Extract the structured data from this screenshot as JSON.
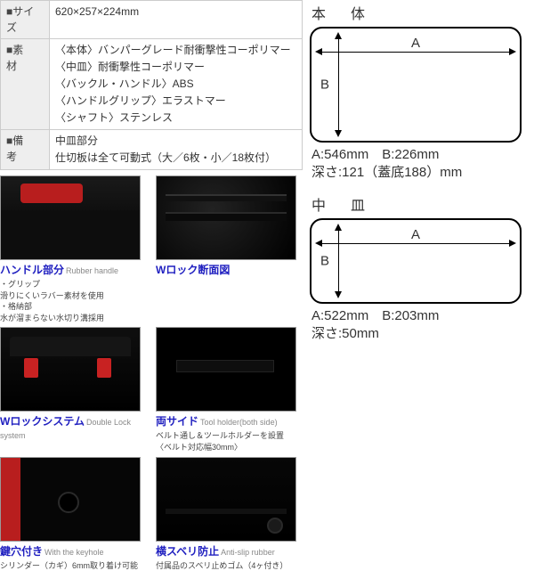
{
  "spec": {
    "size_label": "■サイズ",
    "size_value": "620×257×224mm",
    "material_label": "■素　材",
    "material_lines": [
      "〈本体〉バンパーグレード耐衝撃性コーポリマー",
      "〈中皿〉耐衝撃性コーポリマー",
      "〈バックル・ハンドル〉ABS",
      "〈ハンドルグリップ〉エラストマー",
      "〈シャフト〉ステンレス"
    ],
    "remarks_label": "■備　考",
    "remarks_lines": [
      "中皿部分",
      "仕切板は全て可動式（大／6枚・小／18枚付）"
    ]
  },
  "features": [
    {
      "key": "handle",
      "title_jp": "ハンドル部分",
      "title_en": "Rubber handle",
      "details": [
        "・グリップ",
        "滑りにくいラバー素材を使用",
        "・格納部",
        "水が溜まらない水切り溝採用"
      ]
    },
    {
      "key": "wlock-cross",
      "title_jp": "Wロック断面図",
      "title_en": "",
      "details": []
    },
    {
      "key": "wlock-sys",
      "title_jp": "Wロックシステム",
      "title_en": "Double Lock system",
      "details": []
    },
    {
      "key": "side",
      "title_jp": "両サイド",
      "title_en": "Tool holder(both side)",
      "details": [
        "ベルト通し＆ツールホルダーを設置",
        "〈ベルト対応幅30mm〉"
      ]
    },
    {
      "key": "keyhole",
      "title_jp": "鍵穴付き",
      "title_en": "With the keyhole",
      "details": [
        "シリンダー（カギ）6mm取り着け可能"
      ]
    },
    {
      "key": "anti-slip",
      "title_jp": "横スベリ防止",
      "title_en": "Anti-slip rubber",
      "details": [
        "付属品のスベリ止めゴム（4ヶ付き）"
      ]
    }
  ],
  "diagrams": {
    "body": {
      "heading": "本　体",
      "a_label": "A",
      "b_label": "B",
      "line1": "A:546mm　B:226mm",
      "line2": "深さ:121（蓋底188）mm"
    },
    "tray": {
      "heading": "中　皿",
      "a_label": "A",
      "b_label": "B",
      "line1": "A:522mm　B:203mm",
      "line2": "深さ:50mm"
    }
  },
  "colors": {
    "title": "#2020c0",
    "accent_red": "#c82222"
  }
}
